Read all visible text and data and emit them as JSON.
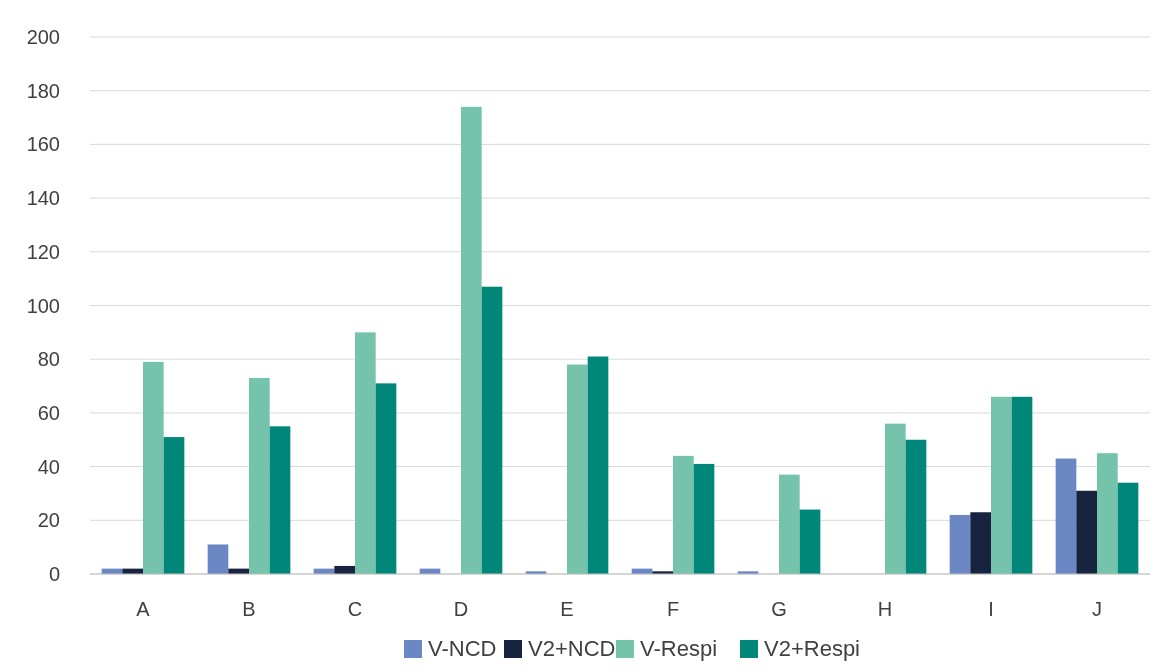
{
  "chart_data": {
    "type": "bar",
    "categories": [
      "A",
      "B",
      "C",
      "D",
      "E",
      "F",
      "G",
      "H",
      "I",
      "J"
    ],
    "series": [
      {
        "name": "V-NCD",
        "color": "#6b87c4",
        "values": [
          2,
          11,
          2,
          2,
          1,
          2,
          1,
          0,
          22,
          43
        ]
      },
      {
        "name": "V2+NCD",
        "color": "#18233f",
        "values": [
          2,
          2,
          3,
          0,
          0,
          1,
          0,
          0,
          23,
          31
        ]
      },
      {
        "name": "V-Respi",
        "color": "#76c3ab",
        "values": [
          79,
          73,
          90,
          174,
          78,
          44,
          37,
          56,
          66,
          45
        ]
      },
      {
        "name": "V2+Respi",
        "color": "#00877a",
        "values": [
          51,
          55,
          71,
          107,
          81,
          41,
          24,
          50,
          66,
          34
        ]
      }
    ],
    "ylim": [
      0,
      200
    ],
    "yticks": [
      0,
      20,
      40,
      60,
      80,
      100,
      120,
      140,
      160,
      180,
      200
    ],
    "grid": "y",
    "legend": "bottom"
  }
}
